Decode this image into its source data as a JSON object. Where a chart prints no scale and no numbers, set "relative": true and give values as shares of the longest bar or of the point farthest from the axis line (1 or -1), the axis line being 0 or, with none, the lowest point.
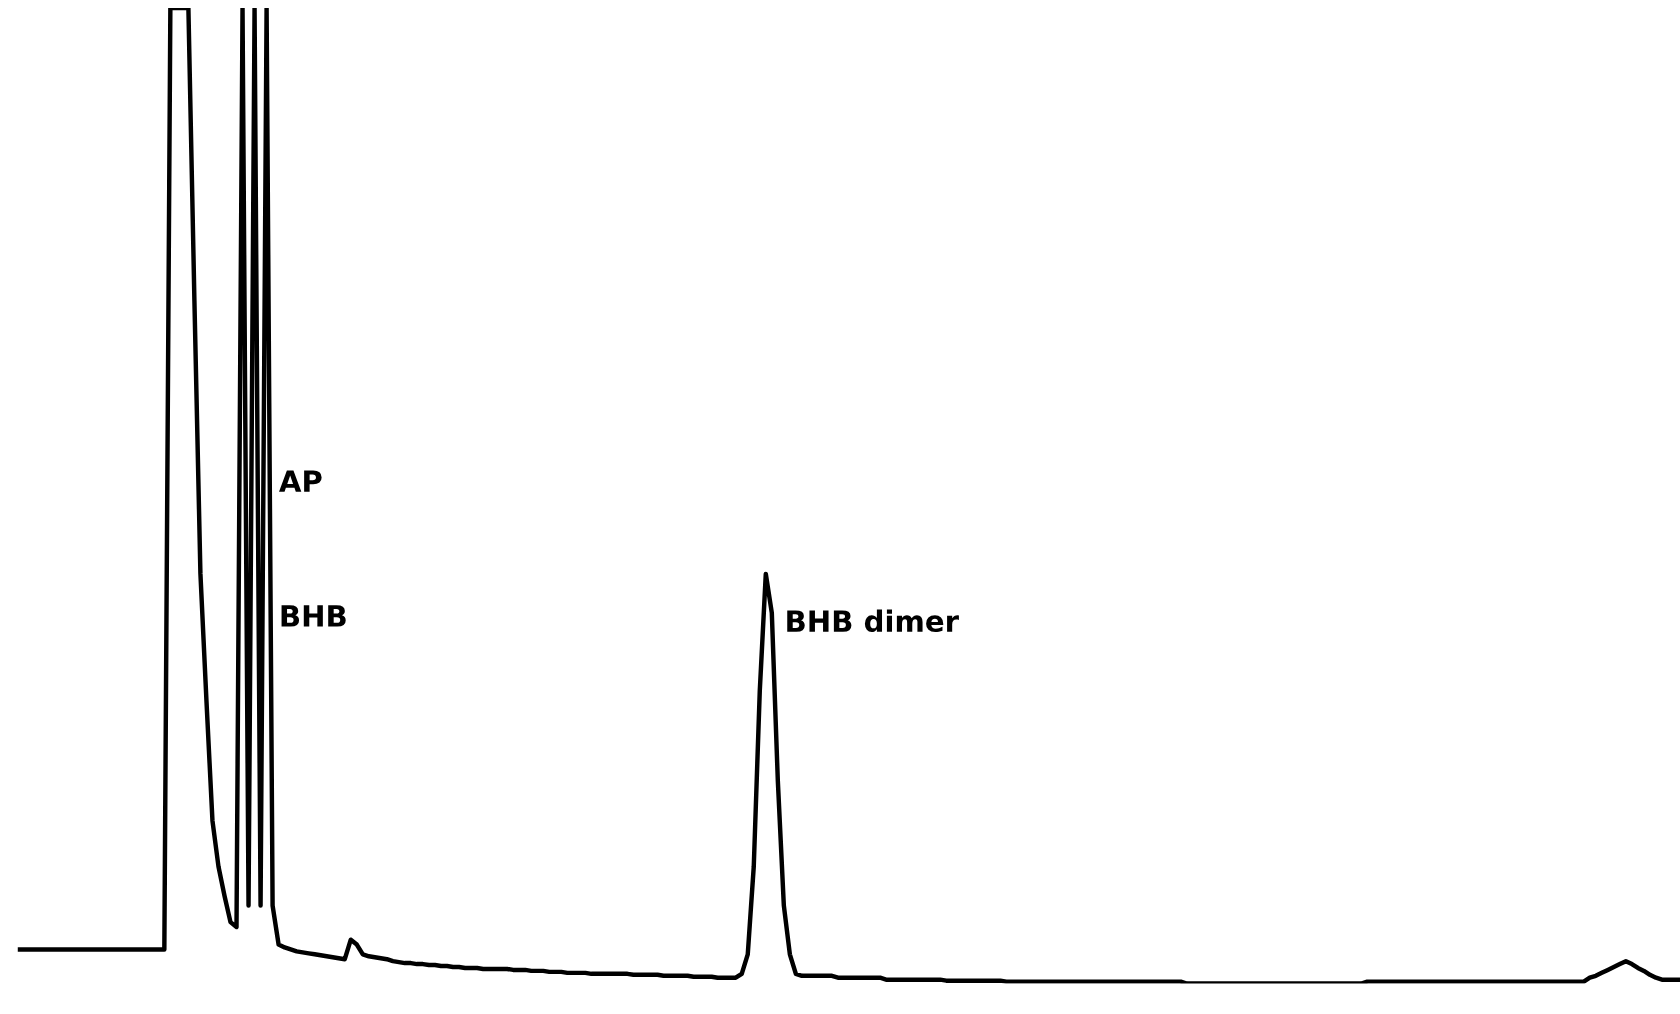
{
  "chart_data": {
    "type": "line",
    "relative": true,
    "categories": [
      null,
      null,
      null,
      null,
      null,
      null,
      null,
      null,
      null,
      null,
      null,
      null,
      null,
      null,
      null,
      null,
      null,
      null,
      null,
      null,
      null,
      null,
      null,
      null,
      null,
      null,
      null,
      null,
      null,
      null,
      null,
      null,
      null,
      null,
      null,
      null,
      null,
      null,
      null,
      null,
      null,
      null,
      null,
      null,
      null,
      null,
      null,
      null,
      null,
      null,
      null,
      null,
      null,
      null,
      null,
      null,
      null,
      null,
      null,
      null,
      null,
      null,
      null,
      null,
      null,
      null,
      null,
      null,
      null,
      null,
      null,
      null,
      null,
      null,
      null,
      null,
      null,
      null,
      null,
      null,
      null,
      null,
      null,
      null,
      null,
      null,
      null,
      null,
      null,
      null,
      null,
      null,
      null,
      null,
      null,
      null,
      null,
      null,
      null,
      null,
      null,
      null,
      null,
      null,
      null,
      null,
      null,
      null,
      null,
      null,
      null,
      null,
      null,
      null,
      null,
      null,
      null,
      null,
      null,
      null,
      null,
      null,
      null,
      null,
      null,
      null,
      null,
      null,
      null,
      null,
      null,
      null,
      null,
      null,
      null,
      null,
      null,
      null,
      null,
      null,
      null,
      null,
      null,
      null,
      null,
      null,
      null,
      null,
      null,
      null,
      null,
      null,
      null,
      null,
      null,
      null,
      null,
      null,
      null,
      null,
      null,
      null,
      null,
      null,
      null,
      null,
      null,
      null,
      null,
      null,
      null,
      null,
      null,
      null,
      null,
      null,
      null,
      null,
      null,
      null,
      null,
      null,
      null,
      null,
      null,
      null,
      null,
      null,
      null,
      null,
      null,
      null,
      null,
      null,
      null,
      null,
      null,
      null,
      null,
      null,
      null,
      null,
      null,
      null,
      null,
      null,
      null,
      null,
      null,
      null,
      null,
      null,
      null,
      null,
      null,
      null,
      null,
      null,
      null,
      null,
      null,
      null,
      null,
      null,
      null,
      null,
      null,
      null,
      null,
      null,
      null,
      null,
      null,
      null,
      null,
      null,
      null,
      null,
      null,
      null,
      null,
      null,
      null,
      null,
      null,
      null,
      null,
      null,
      null,
      null,
      null,
      null,
      null,
      null,
      null,
      null,
      null,
      null,
      null,
      null,
      null,
      null,
      null,
      null,
      null,
      null,
      null,
      null,
      null,
      null,
      null,
      null,
      null,
      null,
      null,
      null,
      null
    ],
    "series": [
      {
        "color": "#000000",
        "values": [
          0.035,
          0.035,
          0.035,
          0.035,
          0.035,
          0.035,
          0.035,
          0.035,
          0.035,
          0.035,
          0.035,
          0.035,
          0.035,
          0.035,
          0.035,
          0.035,
          0.035,
          0.035,
          0.035,
          0.035,
          0.035,
          0.035,
          0.035,
          0.035,
          0.035,
          1,
          1,
          1,
          1,
          0.7,
          0.42,
          0.29,
          0.167,
          0.12,
          0.09,
          0.063,
          0.058,
          1,
          0.08,
          1,
          0.08,
          1,
          0.08,
          0.04,
          0.037,
          0.035,
          0.033,
          0.032,
          0.031,
          0.03,
          0.029,
          0.028,
          0.027,
          0.026,
          0.025,
          0.045,
          0.04,
          0.03,
          0.028,
          0.027,
          0.026,
          0.025,
          0.023,
          0.022,
          0.021,
          0.021,
          0.02,
          0.02,
          0.019,
          0.019,
          0.018,
          0.018,
          0.017,
          0.017,
          0.016,
          0.016,
          0.016,
          0.015,
          0.015,
          0.015,
          0.015,
          0.015,
          0.014,
          0.014,
          0.014,
          0.013,
          0.013,
          0.013,
          0.012,
          0.012,
          0.012,
          0.011,
          0.011,
          0.011,
          0.011,
          0.01,
          0.01,
          0.01,
          0.01,
          0.01,
          0.01,
          0.01,
          0.009,
          0.009,
          0.009,
          0.009,
          0.009,
          0.008,
          0.008,
          0.008,
          0.008,
          0.008,
          0.007,
          0.007,
          0.007,
          0.007,
          0.006,
          0.006,
          0.006,
          0.006,
          0.01,
          0.03,
          0.12,
          0.3,
          0.42,
          0.38,
          0.208,
          0.08,
          0.03,
          0.01,
          0.008,
          0.008,
          0.008,
          0.008,
          0.008,
          0.008,
          0.006,
          0.006,
          0.006,
          0.006,
          0.006,
          0.006,
          0.006,
          0.006,
          0.004,
          0.004,
          0.004,
          0.004,
          0.004,
          0.004,
          0.004,
          0.004,
          0.004,
          0.004,
          0.003,
          0.003,
          0.003,
          0.003,
          0.003,
          0.003,
          0.003,
          0.003,
          0.003,
          0.003,
          0.002,
          0.002,
          0.002,
          0.002,
          0.002,
          0.002,
          0.002,
          0.002,
          0.002,
          0.002,
          0.002,
          0.002,
          0.002,
          0.002,
          0.002,
          0.002,
          0.002,
          0.002,
          0.002,
          0.002,
          0.002,
          0.002,
          0.002,
          0.002,
          0.002,
          0.002,
          0.002,
          0.002,
          0.002,
          0.002,
          0,
          0,
          0,
          0,
          0,
          0,
          0,
          0,
          0,
          0,
          0,
          0,
          0,
          0,
          0,
          0,
          0,
          0,
          0,
          0,
          0,
          0,
          0,
          0,
          0,
          0,
          0,
          0,
          0,
          0,
          0.002,
          0.002,
          0.002,
          0.002,
          0.002,
          0.002,
          0.002,
          0.002,
          0.002,
          0.002,
          0.002,
          0.002,
          0.002,
          0.002,
          0.002,
          0.002,
          0.002,
          0.002,
          0.002,
          0.002,
          0.002,
          0.002,
          0.002,
          0.002,
          0.002,
          0.002,
          0.002,
          0.002,
          0.002,
          0.002,
          0.002,
          0.002,
          0.002,
          0.002,
          0.002,
          0.002,
          0.002,
          0.006,
          0.008,
          0.011,
          0.014,
          0.017,
          0.02,
          0.023,
          0.02,
          0.016,
          0.013,
          0.009,
          0.006,
          0.004,
          0.004,
          0.004,
          0.004
        ]
      }
    ],
    "annotations": [
      "AP",
      "BHB",
      "BHB dimer"
    ]
  }
}
